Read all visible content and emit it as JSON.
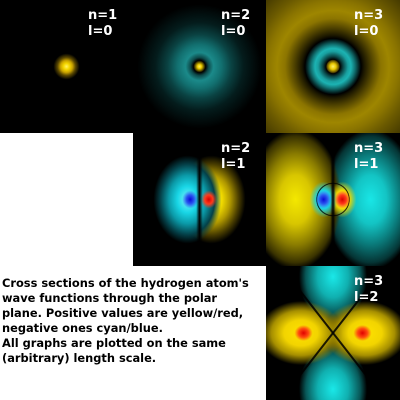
{
  "panels": [
    {
      "id": "p-1-0",
      "n_label": "n=1",
      "l_label": "l=0"
    },
    {
      "id": "p-2-0",
      "n_label": "n=2",
      "l_label": "l=0"
    },
    {
      "id": "p-3-0",
      "n_label": "n=3",
      "l_label": "l=0"
    },
    {
      "id": "p-2-1",
      "n_label": "n=2",
      "l_label": "l=1"
    },
    {
      "id": "p-3-1",
      "n_label": "n=3",
      "l_label": "l=1"
    },
    {
      "id": "p-3-2",
      "n_label": "n=3",
      "l_label": "l=2"
    }
  ],
  "caption": {
    "line1": "Cross sections of the hydrogen atom's",
    "line2": "wave functions through the polar",
    "line3": "plane.  Positive values are yellow/red,",
    "line4": "negative ones cyan/blue.",
    "line5": "All graphs are plotted on the same",
    "line6": "(arbitrary) length scale."
  },
  "colors": {
    "positive": "#f4de00",
    "positive_core": "#e00000",
    "negative": "#19d6e6",
    "negative_core": "#0a0ad8",
    "background": "#000000",
    "page": "#ffffff"
  }
}
